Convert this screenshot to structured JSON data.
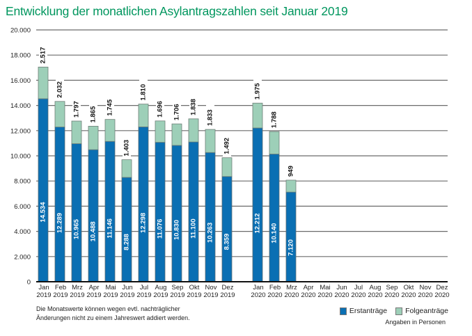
{
  "chart_data": {
    "type": "bar",
    "stacked": true,
    "title": "Entwicklung der monatlichen Asylantragszahlen seit Januar 2019",
    "xlabel": "",
    "ylabel": "",
    "ylim": [
      0,
      20000
    ],
    "yticks": [
      0,
      2000,
      4000,
      6000,
      8000,
      10000,
      12000,
      14000,
      16000,
      18000,
      20000
    ],
    "ytick_labels": [
      "0",
      "2.000",
      "4.000",
      "6.000",
      "8.000",
      "10.000",
      "12.000",
      "14.000",
      "16.000",
      "18.000",
      "20.000"
    ],
    "grid": true,
    "groups": [
      {
        "year": "2019",
        "categories": [
          "Jan",
          "Feb",
          "Mrz",
          "Apr",
          "Mai",
          "Jun",
          "Jul",
          "Aug",
          "Sep",
          "Okt",
          "Nov",
          "Dez"
        ],
        "erst": [
          14534,
          12289,
          10965,
          10488,
          11146,
          8288,
          12298,
          11076,
          10830,
          11100,
          10263,
          8359
        ],
        "folge": [
          2517,
          2032,
          1797,
          1865,
          1745,
          1403,
          1810,
          1696,
          1706,
          1838,
          1833,
          1492
        ],
        "erst_labels": [
          "14.534",
          "12.289",
          "10.965",
          "10.488",
          "11.146",
          "8.288",
          "12.298",
          "11.076",
          "10.830",
          "11.100",
          "10.263",
          "8.359"
        ],
        "folge_labels": [
          "2.517",
          "2.032",
          "1.797",
          "1.865",
          "1.745",
          "1.403",
          "1.810",
          "1.696",
          "1.706",
          "1.838",
          "1.833",
          "1.492"
        ]
      },
      {
        "year": "2020",
        "categories": [
          "Jan",
          "Feb",
          "Mrz",
          "Apr",
          "Mai",
          "Jun",
          "Jul",
          "Aug",
          "Sep",
          "Okt",
          "Nov",
          "Dez"
        ],
        "erst": [
          12212,
          10140,
          7120,
          null,
          null,
          null,
          null,
          null,
          null,
          null,
          null,
          null
        ],
        "folge": [
          1975,
          1788,
          949,
          null,
          null,
          null,
          null,
          null,
          null,
          null,
          null,
          null
        ],
        "erst_labels": [
          "12.212",
          "10.140",
          "7.120",
          "",
          "",
          "",
          "",
          "",
          "",
          "",
          "",
          ""
        ],
        "folge_labels": [
          "1.975",
          "1.788",
          "949",
          "",
          "",
          "",
          "",
          "",
          "",
          "",
          "",
          ""
        ]
      }
    ],
    "series": [
      {
        "name": "Erstanträge",
        "color": "#0a6fb3"
      },
      {
        "name": "Folgeanträge",
        "color": "#9dcfb8"
      }
    ],
    "legend_position": "bottom-right"
  },
  "footnote": {
    "line1": "Die Monatswerte können wegen evtl. nachträglicher",
    "line2": "Änderungen nicht zu einem Jahreswert addiert werden."
  },
  "legend": {
    "erst_label": "Erstanträge",
    "folge_label": "Folgeanträge",
    "units": "Angaben in Personen"
  },
  "colors": {
    "title": "#00965e",
    "erst": "#0a6fb3",
    "folge": "#9dcfb8"
  }
}
